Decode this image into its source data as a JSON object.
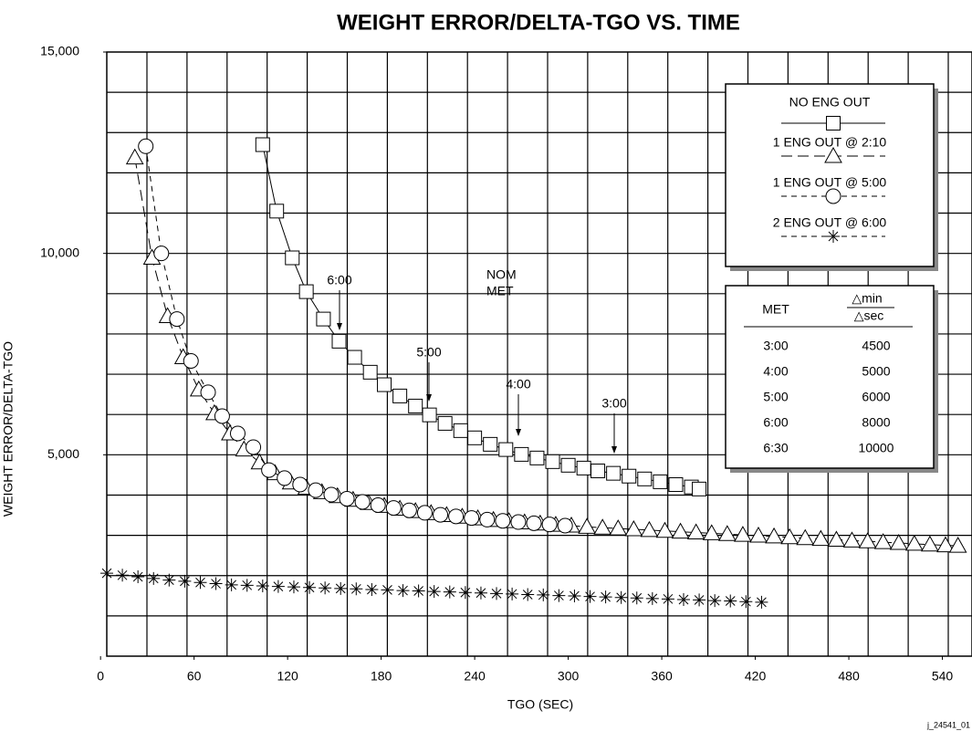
{
  "chart_data": {
    "type": "line",
    "title": "WEIGHT ERROR/DELTA-TGO VS. TIME",
    "x_label": "TGO (SEC)",
    "y_label": "WEIGHT ERROR/DELTA-TGO",
    "footnote": "j_24541_01",
    "xlim": [
      4,
      559
    ],
    "ylim": [
      0,
      15000
    ],
    "xticks": [
      0,
      60,
      120,
      180,
      240,
      300,
      360,
      420,
      480,
      540
    ],
    "yticks": [
      {
        "value": 5000,
        "label": "5,000"
      },
      {
        "value": 10000,
        "label": "10,000"
      },
      {
        "value": 15000,
        "label": "15,000"
      }
    ],
    "grid": true,
    "series": [
      {
        "name": "NO ENG OUT",
        "color": "#000",
        "marker": "square",
        "linestyle": "solid",
        "x": [
          104,
          113,
          123,
          132,
          143,
          153,
          163,
          173,
          182,
          192,
          202,
          211,
          221,
          231,
          240,
          250,
          260,
          270,
          280,
          290,
          300,
          310,
          319,
          329,
          339,
          349,
          359,
          369,
          379,
          384
        ],
        "values": [
          12700,
          11050,
          9890,
          9050,
          8370,
          7820,
          7420,
          7050,
          6740,
          6460,
          6210,
          5990,
          5780,
          5600,
          5420,
          5260,
          5130,
          5010,
          4920,
          4830,
          4740,
          4670,
          4600,
          4540,
          4470,
          4400,
          4330,
          4260,
          4200,
          4150
        ]
      },
      {
        "name": "1 ENG OUT @ 2:10",
        "color": "#000",
        "marker": "triangle",
        "linestyle": "longdash",
        "x": [
          22,
          33,
          43,
          53,
          63,
          73,
          83,
          92,
          102,
          112,
          122,
          132,
          142,
          152,
          162,
          172,
          182,
          192,
          202,
          212,
          222,
          232,
          242,
          252,
          262,
          272,
          282,
          292,
          302,
          312,
          322,
          332,
          342,
          352,
          362,
          372,
          382,
          392,
          402,
          412,
          422,
          432,
          442,
          452,
          462,
          472,
          482,
          492,
          502,
          512,
          522,
          532,
          542,
          550
        ],
        "values": [
          12380,
          9890,
          8440,
          7420,
          6620,
          6030,
          5530,
          5130,
          4810,
          4540,
          4310,
          4180,
          4070,
          3970,
          3880,
          3800,
          3730,
          3660,
          3600,
          3550,
          3500,
          3460,
          3420,
          3380,
          3350,
          3320,
          3290,
          3260,
          3240,
          3210,
          3190,
          3170,
          3150,
          3130,
          3110,
          3090,
          3070,
          3050,
          3030,
          3010,
          2990,
          2970,
          2950,
          2930,
          2910,
          2890,
          2870,
          2850,
          2830,
          2810,
          2790,
          2770,
          2750,
          2740
        ]
      },
      {
        "name": "1 ENG OUT @ 5:00",
        "color": "#000",
        "marker": "circle",
        "linestyle": "dash",
        "x": [
          29,
          39,
          49,
          58,
          69,
          78,
          88,
          98,
          108,
          118,
          128,
          138,
          148,
          158,
          168,
          178,
          188,
          198,
          208,
          218,
          228,
          238,
          248,
          258,
          268,
          278,
          288,
          298
        ],
        "values": [
          12660,
          10000,
          8370,
          7330,
          6550,
          5960,
          5530,
          5190,
          4620,
          4420,
          4260,
          4120,
          4010,
          3910,
          3830,
          3750,
          3680,
          3620,
          3560,
          3510,
          3470,
          3430,
          3390,
          3360,
          3330,
          3300,
          3270,
          3240
        ]
      },
      {
        "name": "2 ENG OUT @ 6:00",
        "color": "#000",
        "marker": "asterisk",
        "linestyle": "none",
        "x": [
          4,
          14,
          24,
          34,
          44,
          54,
          64,
          74,
          84,
          94,
          104,
          114,
          124,
          134,
          144,
          154,
          164,
          174,
          184,
          194,
          204,
          214,
          224,
          234,
          244,
          254,
          264,
          274,
          284,
          294,
          304,
          314,
          324,
          334,
          344,
          354,
          364,
          374,
          384,
          394,
          404,
          414,
          424
        ],
        "values": [
          2060,
          2010,
          1970,
          1930,
          1890,
          1860,
          1830,
          1800,
          1770,
          1760,
          1745,
          1730,
          1720,
          1705,
          1695,
          1680,
          1670,
          1655,
          1645,
          1630,
          1620,
          1605,
          1595,
          1580,
          1570,
          1555,
          1545,
          1530,
          1520,
          1505,
          1495,
          1480,
          1470,
          1455,
          1445,
          1430,
          1420,
          1405,
          1395,
          1380,
          1370,
          1355,
          1340
        ]
      }
    ],
    "annotations": [
      "6:00",
      "5:00",
      "4:00",
      "3:00",
      "NOM",
      "MET"
    ],
    "table": {
      "columns": [
        "MET",
        "△min",
        "△sec"
      ],
      "rows": [
        [
          "3:00",
          4500
        ],
        [
          "4:00",
          5000
        ],
        [
          "5:00",
          6000
        ],
        [
          "6:00",
          8000
        ],
        [
          "6:30",
          10000
        ]
      ]
    }
  }
}
